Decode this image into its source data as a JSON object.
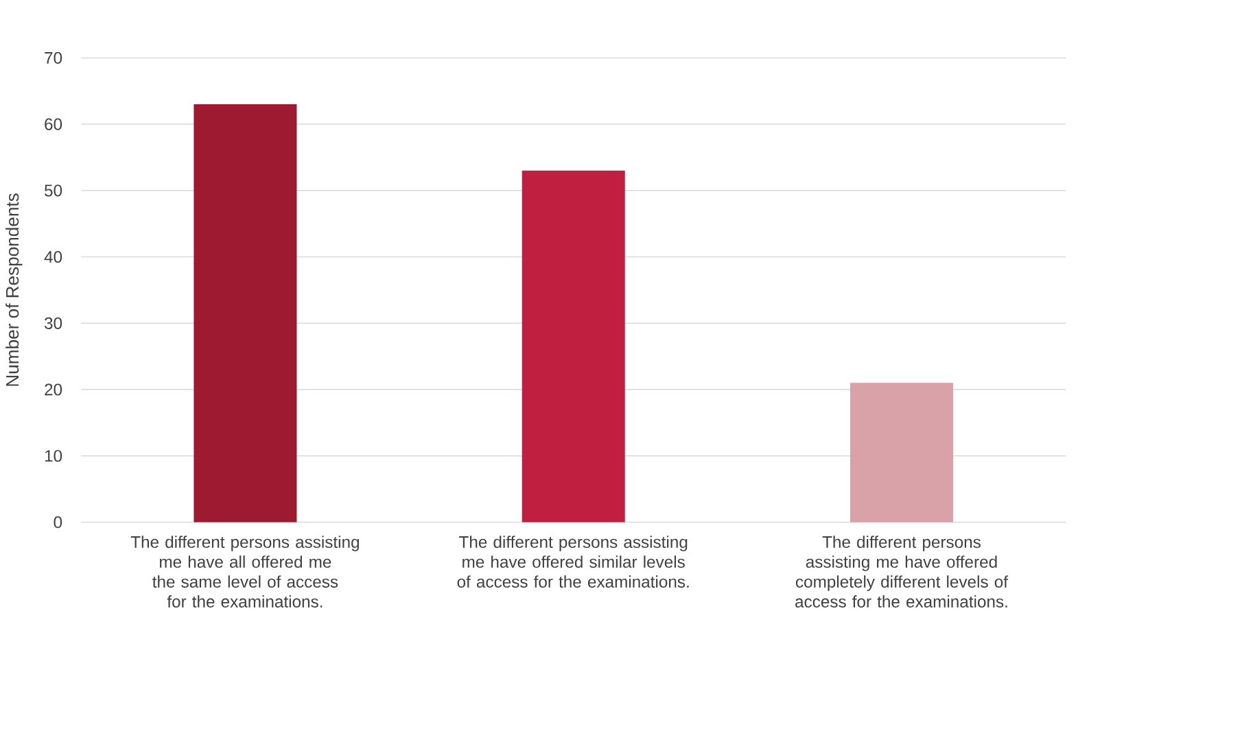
{
  "chart_data": {
    "type": "bar",
    "ylabel": "Number of Respondents",
    "categories": [
      "The different persons assisting me have all offered me the same level of access for the examinations.",
      "The different persons assisting me have offered similar levels of access for the examinations.",
      "The different persons assisting me have offered completely different levels of access for the examinations."
    ],
    "values": [
      63,
      53,
      21
    ],
    "colors": [
      "#9e1a30",
      "#c01f3f",
      "#d9a2a8"
    ],
    "ylim": [
      0,
      70
    ],
    "yticks": [
      0,
      10,
      20,
      30,
      40,
      50,
      60,
      70
    ],
    "grid": "y"
  }
}
